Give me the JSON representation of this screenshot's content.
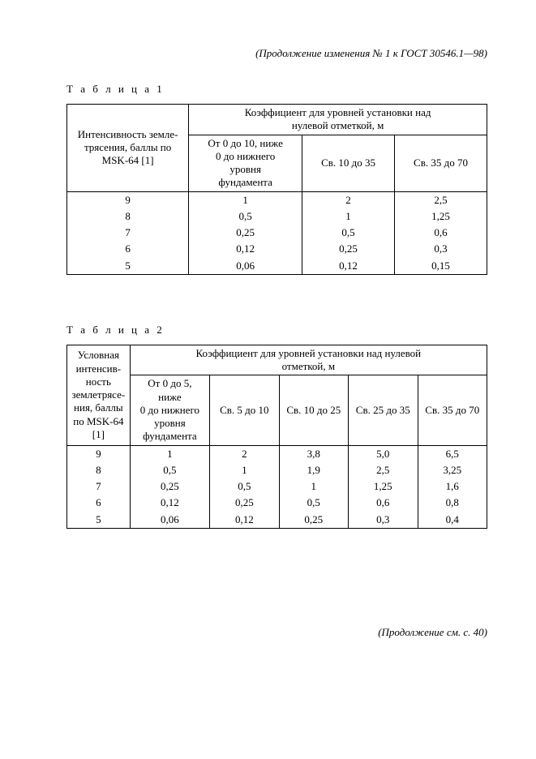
{
  "header_ref": "(Продолжение изменения № 1 к ГОСТ  30546.1—98)",
  "footer_ref": "(Продолжение см. с. 40)",
  "table1": {
    "caption": "Т а б л и ц а  1",
    "row_header": "Интенсивность земле-\nтрясения, баллы по\nMSK-64 [1]",
    "col_group_header": "Коэффициент для уровней установки над\nнулевой отметкой, м",
    "col_headers": [
      "От 0 до 10, ниже\n0 до нижнего\nуровня\nфундамента",
      "Св. 10 до 35",
      "Св. 35 до 70"
    ],
    "rows": [
      {
        "int": "9",
        "v": [
          "1",
          "2",
          "2,5"
        ]
      },
      {
        "int": "8",
        "v": [
          "0,5",
          "1",
          "1,25"
        ]
      },
      {
        "int": "7",
        "v": [
          "0,25",
          "0,5",
          "0,6"
        ]
      },
      {
        "int": "6",
        "v": [
          "0,12",
          "0,25",
          "0,3"
        ]
      },
      {
        "int": "5",
        "v": [
          "0,06",
          "0,12",
          "0,15"
        ]
      }
    ]
  },
  "table2": {
    "caption": "Т а б л и ц а  2",
    "row_header": "Условная\nинтенсив-\nность\nземлетрясе-\nния, баллы\nпо MSK-64\n[1]",
    "col_group_header": "Коэффициент для уровней установки над нулевой\nотметкой, м",
    "col_headers": [
      "От 0 до 5,\nниже\n0 до нижнего\nуровня\nфундамента",
      "Св. 5 до 10",
      "Св. 10 до 25",
      "Св. 25 до 35",
      "Св. 35 до 70"
    ],
    "rows": [
      {
        "int": "9",
        "v": [
          "1",
          "2",
          "3,8",
          "5,0",
          "6,5"
        ]
      },
      {
        "int": "8",
        "v": [
          "0,5",
          "1",
          "1,9",
          "2,5",
          "3,25"
        ]
      },
      {
        "int": "7",
        "v": [
          "0,25",
          "0,5",
          "1",
          "1,25",
          "1,6"
        ]
      },
      {
        "int": "6",
        "v": [
          "0,12",
          "0,25",
          "0,5",
          "0,6",
          "0,8"
        ]
      },
      {
        "int": "5",
        "v": [
          "0,06",
          "0,12",
          "0,25",
          "0,3",
          "0,4"
        ]
      }
    ]
  },
  "layout": {
    "t1_col_widths_pct": [
      29,
      27,
      22,
      22
    ],
    "t2_col_widths_pct": [
      15,
      19,
      16.5,
      16.5,
      16.5,
      16.5
    ]
  },
  "colors": {
    "text": "#000000",
    "background": "#ffffff",
    "border": "#000000"
  }
}
